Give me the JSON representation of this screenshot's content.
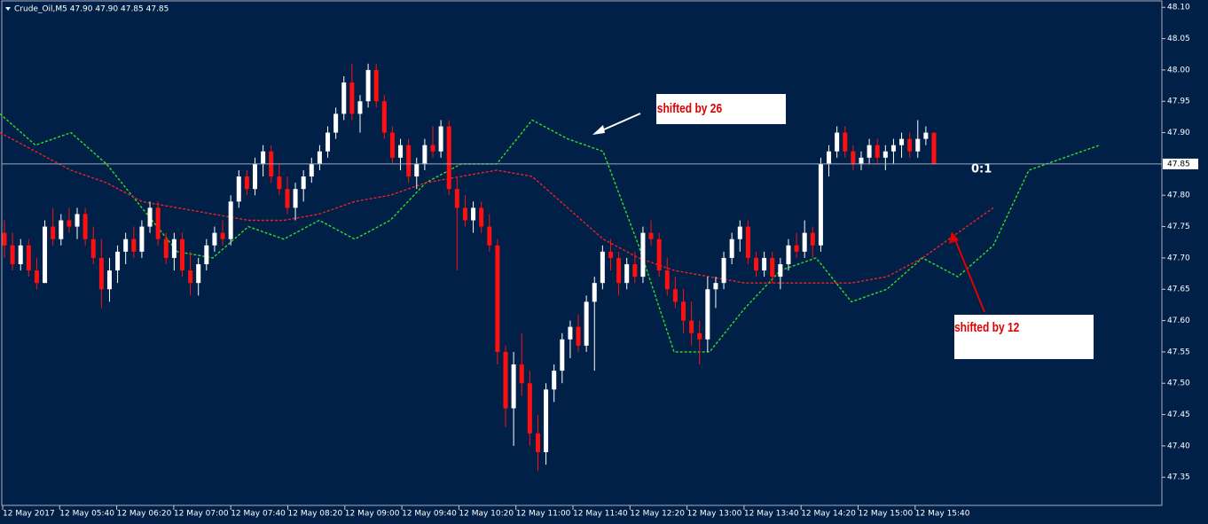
{
  "chart_data": {
    "type": "candlestick",
    "header": "Crude_Oil,M5  47.90 47.90 47.85 47.85",
    "current_price": 47.85,
    "annotations": [
      "shifted by 26",
      "shifted by 12",
      "0:1"
    ],
    "ylim": [
      47.325,
      48.106
    ],
    "yticks": [
      {
        "value": 48.1,
        "label": "48.10"
      },
      48.05,
      {
        "value": 48,
        "label": "48.00"
      },
      47.95,
      {
        "value": 47.9,
        "label": "47.90"
      },
      {
        "value": 47.8,
        "label": "47.80"
      },
      47.75,
      {
        "value": 47.7,
        "label": "47.70"
      },
      47.65,
      {
        "value": 47.6,
        "label": "47.60"
      },
      47.55,
      {
        "value": 47.5,
        "label": "47.50"
      },
      47.45,
      {
        "value": 47.4,
        "label": "47.40"
      },
      47.35
    ],
    "xticklabels": [
      "12 May 2017",
      "12 May 05:40",
      "12 May 06:20",
      "12 May 07:00",
      "12 May 07:40",
      "12 May 08:20",
      "12 May 09:00",
      "12 May 09:40",
      "12 May 10:20",
      "12 May 11:00",
      "12 May 11:40",
      "12 May 12:20",
      "12 May 13:00",
      "12 May 13:40",
      "12 May 14:20",
      "12 May 15:00",
      "12 May 15:40"
    ],
    "bull_color": "#ffffff",
    "bear_color": "#ff1010",
    "candles": [
      [
        47.74,
        47.76,
        47.7,
        47.72
      ],
      [
        47.72,
        47.74,
        47.68,
        47.69
      ],
      [
        47.69,
        47.73,
        47.68,
        47.72
      ],
      [
        47.72,
        47.73,
        47.67,
        47.68
      ],
      [
        47.68,
        47.7,
        47.65,
        47.66
      ],
      [
        47.66,
        47.76,
        47.66,
        47.75
      ],
      [
        47.75,
        47.78,
        47.72,
        47.73
      ],
      [
        47.73,
        47.77,
        47.72,
        47.76
      ],
      [
        47.76,
        47.78,
        47.74,
        47.75
      ],
      [
        47.75,
        47.78,
        47.73,
        47.77
      ],
      [
        47.77,
        47.78,
        47.72,
        47.73
      ],
      [
        47.73,
        47.75,
        47.69,
        47.7
      ],
      [
        47.7,
        47.73,
        47.62,
        47.65
      ],
      [
        47.65,
        47.7,
        47.63,
        47.68
      ],
      [
        47.68,
        47.72,
        47.66,
        47.71
      ],
      [
        47.71,
        47.74,
        47.69,
        47.73
      ],
      [
        47.73,
        47.75,
        47.7,
        47.71
      ],
      [
        47.71,
        47.76,
        47.7,
        47.75
      ],
      [
        47.75,
        47.79,
        47.74,
        47.78
      ],
      [
        47.78,
        47.79,
        47.72,
        47.73
      ],
      [
        47.73,
        47.74,
        47.69,
        47.7
      ],
      [
        47.7,
        47.74,
        47.68,
        47.73
      ],
      [
        47.73,
        47.74,
        47.67,
        47.68
      ],
      [
        47.68,
        47.71,
        47.64,
        47.66
      ],
      [
        47.66,
        47.7,
        47.64,
        47.69
      ],
      [
        47.69,
        47.73,
        47.68,
        47.72
      ],
      [
        47.72,
        47.75,
        47.71,
        47.74
      ],
      [
        47.74,
        47.76,
        47.72,
        47.73
      ],
      [
        47.73,
        47.8,
        47.72,
        47.79
      ],
      [
        47.79,
        47.84,
        47.78,
        47.83
      ],
      [
        47.83,
        47.84,
        47.8,
        47.81
      ],
      [
        47.81,
        47.86,
        47.8,
        47.85
      ],
      [
        47.85,
        47.88,
        47.83,
        47.87
      ],
      [
        47.87,
        47.88,
        47.82,
        47.83
      ],
      [
        47.83,
        47.85,
        47.8,
        47.81
      ],
      [
        47.81,
        47.83,
        47.77,
        47.78
      ],
      [
        47.78,
        47.82,
        47.76,
        47.81
      ],
      [
        47.81,
        47.84,
        47.79,
        47.83
      ],
      [
        47.83,
        47.86,
        47.82,
        47.85
      ],
      [
        47.85,
        47.88,
        47.84,
        47.87
      ],
      [
        47.87,
        47.91,
        47.86,
        47.9
      ],
      [
        47.9,
        47.94,
        47.89,
        47.93
      ],
      [
        47.93,
        47.99,
        47.92,
        47.98
      ],
      [
        47.98,
        48.01,
        47.92,
        47.93
      ],
      [
        47.93,
        47.96,
        47.9,
        47.95
      ],
      [
        47.95,
        48.01,
        47.94,
        48.0
      ],
      [
        48.0,
        48.01,
        47.94,
        47.95
      ],
      [
        47.95,
        47.96,
        47.89,
        47.9
      ],
      [
        47.9,
        47.91,
        47.85,
        47.86
      ],
      [
        47.86,
        47.89,
        47.84,
        47.88
      ],
      [
        47.88,
        47.89,
        47.82,
        47.83
      ],
      [
        47.83,
        47.86,
        47.81,
        47.85
      ],
      [
        47.85,
        47.89,
        47.84,
        47.88
      ],
      [
        47.88,
        47.91,
        47.86,
        47.87
      ],
      [
        47.87,
        47.92,
        47.86,
        47.91
      ],
      [
        47.91,
        47.92,
        47.8,
        47.81
      ],
      [
        47.81,
        47.83,
        47.68,
        47.78
      ],
      [
        47.78,
        47.8,
        47.75,
        47.76
      ],
      [
        47.76,
        47.79,
        47.74,
        47.78
      ],
      [
        47.78,
        47.79,
        47.74,
        47.75
      ],
      [
        47.75,
        47.77,
        47.71,
        47.72
      ],
      [
        47.72,
        47.73,
        47.53,
        47.55
      ],
      [
        47.55,
        47.56,
        47.43,
        47.46
      ],
      [
        47.46,
        47.55,
        47.4,
        47.53
      ],
      [
        47.53,
        47.58,
        47.48,
        47.5
      ],
      [
        47.5,
        47.52,
        47.4,
        47.42
      ],
      [
        47.42,
        47.45,
        47.36,
        47.39
      ],
      [
        47.39,
        47.5,
        47.37,
        47.49
      ],
      [
        47.49,
        47.53,
        47.47,
        47.52
      ],
      [
        47.52,
        47.58,
        47.5,
        47.57
      ],
      [
        47.57,
        47.6,
        47.54,
        47.59
      ],
      [
        47.59,
        47.61,
        47.55,
        47.56
      ],
      [
        47.56,
        47.64,
        47.55,
        47.63
      ],
      [
        47.63,
        47.67,
        47.52,
        47.66
      ],
      [
        47.66,
        47.72,
        47.65,
        47.71
      ],
      [
        47.71,
        47.73,
        47.68,
        47.7
      ],
      [
        47.7,
        47.71,
        47.64,
        47.66
      ],
      [
        47.66,
        47.7,
        47.65,
        47.69
      ],
      [
        47.69,
        47.71,
        47.66,
        47.67
      ],
      [
        47.67,
        47.75,
        47.66,
        47.74
      ],
      [
        47.74,
        47.76,
        47.72,
        47.73
      ],
      [
        47.73,
        47.74,
        47.67,
        47.68
      ],
      [
        47.68,
        47.7,
        47.64,
        47.65
      ],
      [
        47.65,
        47.67,
        47.62,
        47.63
      ],
      [
        47.63,
        47.65,
        47.58,
        47.6
      ],
      [
        47.6,
        47.63,
        47.56,
        47.58
      ],
      [
        47.58,
        47.6,
        47.53,
        47.57
      ],
      [
        47.57,
        47.67,
        47.55,
        47.65
      ],
      [
        47.65,
        47.67,
        47.62,
        47.66
      ],
      [
        47.66,
        47.71,
        47.65,
        47.7
      ],
      [
        47.7,
        47.74,
        47.69,
        47.73
      ],
      [
        47.73,
        47.76,
        47.71,
        47.75
      ],
      [
        47.75,
        47.76,
        47.69,
        47.7
      ],
      [
        47.7,
        47.71,
        47.67,
        47.68
      ],
      [
        47.68,
        47.71,
        47.67,
        47.7
      ],
      [
        47.7,
        47.71,
        47.66,
        47.67
      ],
      [
        47.67,
        47.7,
        47.65,
        47.69
      ],
      [
        47.69,
        47.73,
        47.68,
        47.72
      ],
      [
        47.72,
        47.74,
        47.7,
        47.71
      ],
      [
        47.71,
        47.76,
        47.7,
        47.74
      ],
      [
        47.74,
        47.75,
        47.7,
        47.72
      ],
      [
        47.72,
        47.86,
        47.71,
        47.85
      ],
      [
        47.85,
        47.88,
        47.83,
        47.87
      ],
      [
        47.87,
        47.91,
        47.86,
        47.9
      ],
      [
        47.9,
        47.91,
        47.86,
        47.87
      ],
      [
        47.87,
        47.88,
        47.84,
        47.85
      ],
      [
        47.85,
        47.87,
        47.84,
        47.86
      ],
      [
        47.86,
        47.89,
        47.85,
        47.88
      ],
      [
        47.88,
        47.89,
        47.85,
        47.86
      ],
      [
        47.86,
        47.88,
        47.84,
        47.87
      ],
      [
        47.87,
        47.89,
        47.85,
        47.88
      ],
      [
        47.88,
        47.9,
        47.86,
        47.89
      ],
      [
        47.89,
        47.9,
        47.86,
        47.87
      ],
      [
        47.87,
        47.92,
        47.86,
        47.89
      ],
      [
        47.89,
        47.91,
        47.88,
        47.9
      ],
      [
        47.9,
        47.9,
        47.85,
        47.85
      ]
    ],
    "series": [
      {
        "color": "#33dd22",
        "values": [
          47.93,
          47.88,
          47.9,
          47.85,
          47.78,
          47.71,
          47.7,
          47.75,
          47.73,
          47.76,
          47.73,
          47.76,
          47.82,
          47.85,
          47.85,
          47.92,
          47.89,
          47.87,
          47.72,
          47.55,
          47.55,
          47.62,
          47.68,
          47.7,
          47.63,
          47.65,
          47.7,
          47.67,
          47.72,
          47.84,
          47.86,
          47.88
        ]
      },
      {
        "color": "#ee2222",
        "values": [
          47.9,
          47.87,
          47.84,
          47.82,
          47.79,
          47.78,
          47.77,
          47.76,
          47.76,
          47.77,
          47.79,
          47.8,
          47.82,
          47.83,
          47.84,
          47.83,
          47.78,
          47.73,
          47.7,
          47.68,
          47.67,
          47.66,
          47.66,
          47.66,
          47.66,
          47.67,
          47.7,
          47.74,
          47.78
        ]
      }
    ]
  }
}
